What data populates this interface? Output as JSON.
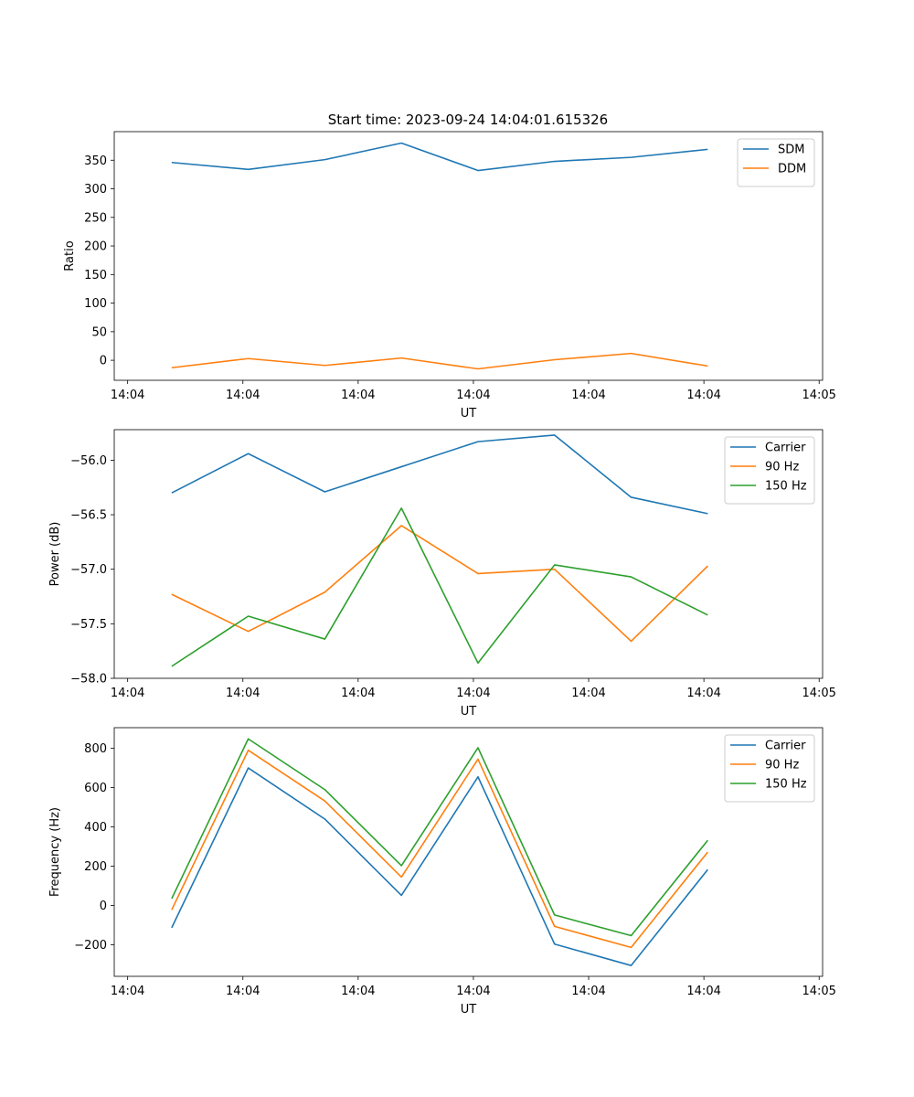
{
  "figure_title": "Start time: 2023-09-24 14:04:01.615326",
  "colors": {
    "blue": "#1f77b4",
    "orange": "#ff7f0e",
    "green": "#2ca02c"
  },
  "x_tick_labels": [
    "14:04",
    "14:04",
    "14:04",
    "14:04",
    "14:04",
    "14:04",
    "14:05"
  ],
  "chart_data": [
    {
      "type": "line",
      "title": "Start time: 2023-09-24 14:04:01.615326",
      "xlabel": "UT",
      "ylabel": "Ratio",
      "xlim": [
        -0.75,
        8.5
      ],
      "ylim": [
        -35,
        400
      ],
      "yticks": [
        0,
        50,
        100,
        150,
        200,
        250,
        300,
        350
      ],
      "legend_loc": "upper right",
      "x": [
        0,
        1,
        2,
        3,
        4,
        5,
        6,
        7
      ],
      "series": [
        {
          "name": "SDM",
          "color": "#1f77b4",
          "values": [
            346,
            334,
            351,
            380,
            332,
            348,
            355,
            369
          ]
        },
        {
          "name": "DDM",
          "color": "#ff7f0e",
          "values": [
            -13,
            3,
            -9,
            4,
            -15,
            1,
            12,
            -10
          ]
        }
      ]
    },
    {
      "type": "line",
      "title": "",
      "xlabel": "UT",
      "ylabel": "Power (dB)",
      "xlim": [
        -0.75,
        8.5
      ],
      "ylim": [
        -58.0,
        -55.72
      ],
      "yticks": [
        -58.0,
        -57.5,
        -57.0,
        -56.5,
        -56.0
      ],
      "ytick_labels": [
        "−58.0",
        "−57.5",
        "−57.0",
        "−56.5",
        "−56.0"
      ],
      "legend_loc": "upper right",
      "x": [
        0,
        1,
        2,
        3,
        4,
        5,
        6,
        7
      ],
      "series": [
        {
          "name": "Carrier",
          "color": "#1f77b4",
          "values": [
            -56.3,
            -55.94,
            -56.29,
            -56.06,
            -55.83,
            -55.77,
            -56.34,
            -56.49
          ]
        },
        {
          "name": "90 Hz",
          "color": "#ff7f0e",
          "values": [
            -57.23,
            -57.57,
            -57.21,
            -56.6,
            -57.04,
            -57.0,
            -57.66,
            -56.97
          ]
        },
        {
          "name": "150 Hz",
          "color": "#2ca02c",
          "values": [
            -57.89,
            -57.43,
            -57.64,
            -56.44,
            -57.86,
            -56.96,
            -57.07,
            -57.42
          ]
        }
      ]
    },
    {
      "type": "line",
      "title": "",
      "xlabel": "UT",
      "ylabel": "Frequency (Hz)",
      "xlim": [
        -0.75,
        8.5
      ],
      "ylim": [
        -360,
        905
      ],
      "yticks": [
        -200,
        0,
        200,
        400,
        600,
        800
      ],
      "ytick_labels": [
        "−200",
        "0",
        "200",
        "400",
        "600",
        "800"
      ],
      "legend_loc": "upper right",
      "x": [
        0,
        1,
        2,
        3,
        4,
        5,
        6,
        7
      ],
      "series": [
        {
          "name": "Carrier",
          "color": "#1f77b4",
          "values": [
            -113,
            700,
            440,
            52,
            655,
            -196,
            -305,
            183
          ]
        },
        {
          "name": "90 Hz",
          "color": "#ff7f0e",
          "values": [
            -22,
            790,
            532,
            145,
            745,
            -106,
            -213,
            272
          ]
        },
        {
          "name": "150 Hz",
          "color": "#2ca02c",
          "values": [
            35,
            848,
            590,
            203,
            803,
            -48,
            -153,
            332
          ]
        }
      ]
    }
  ]
}
